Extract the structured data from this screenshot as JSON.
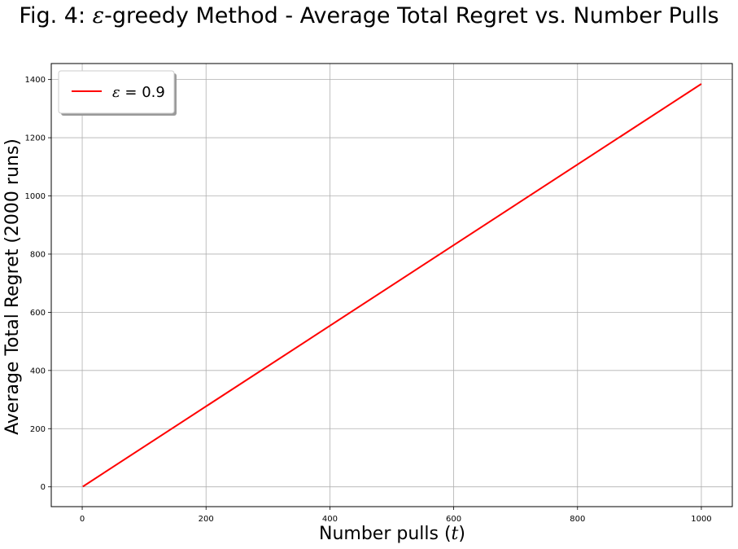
{
  "chart_data": {
    "type": "line",
    "title_prefix": "Fig. 4: ",
    "title_symbol": "ε",
    "title_suffix": "-greedy Method - Average Total Regret vs. Number Pulls",
    "xlabel_text": "Number pulls (",
    "xlabel_var": "t",
    "xlabel_end": ")",
    "ylabel": "Average Total Regret (2000 runs)",
    "xlim": [
      -50,
      1050
    ],
    "ylim": [
      -68,
      1455
    ],
    "xticks": [
      0,
      200,
      400,
      600,
      800,
      1000
    ],
    "yticks": [
      0,
      200,
      400,
      600,
      800,
      1000,
      1200,
      1400
    ],
    "grid": true,
    "legend_position": "top-left",
    "series": [
      {
        "legend_symbol": "ε",
        "legend_rest": " = 0.9",
        "color": "#ff0000",
        "x": [
          1,
          1000
        ],
        "y": [
          1,
          1385
        ]
      }
    ]
  }
}
